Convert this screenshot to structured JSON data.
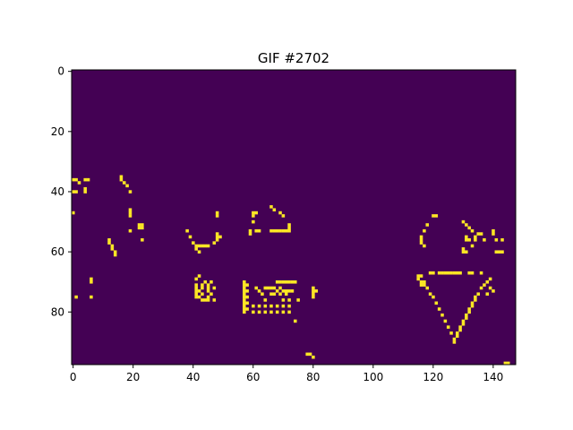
{
  "chart_data": {
    "type": "heatmap",
    "title": "GIF #2702",
    "xlabel": "",
    "ylabel": "",
    "grid": false,
    "legend": "none",
    "xlim": [
      -0.5,
      147.5
    ],
    "ylim": [
      97.5,
      -0.5
    ],
    "x_ticks": [
      0,
      20,
      40,
      60,
      80,
      100,
      120,
      140
    ],
    "y_ticks": [
      0,
      20,
      40,
      60,
      80
    ],
    "colormap": "viridis",
    "background_color": "#440154",
    "pixel_color": "#fde725",
    "value_range": [
      0,
      1
    ],
    "on_pixels": [
      [
        0,
        36
      ],
      [
        1,
        36
      ],
      [
        2,
        37
      ],
      [
        4,
        36
      ],
      [
        5,
        36
      ],
      [
        0,
        40
      ],
      [
        1,
        40
      ],
      [
        4,
        39
      ],
      [
        4,
        40
      ],
      [
        0,
        47
      ],
      [
        16,
        35
      ],
      [
        16,
        36
      ],
      [
        17,
        37
      ],
      [
        18,
        38
      ],
      [
        19,
        40
      ],
      [
        19,
        46
      ],
      [
        19,
        47
      ],
      [
        19,
        48
      ],
      [
        22,
        51
      ],
      [
        22,
        52
      ],
      [
        23,
        51
      ],
      [
        23,
        52
      ],
      [
        19,
        53
      ],
      [
        23,
        56
      ],
      [
        12,
        56
      ],
      [
        12,
        57
      ],
      [
        13,
        58
      ],
      [
        13,
        59
      ],
      [
        14,
        60
      ],
      [
        14,
        61
      ],
      [
        38,
        53
      ],
      [
        39,
        55
      ],
      [
        40,
        57
      ],
      [
        41,
        58
      ],
      [
        42,
        58
      ],
      [
        43,
        58
      ],
      [
        44,
        58
      ],
      [
        45,
        58
      ],
      [
        47,
        57
      ],
      [
        48,
        54
      ],
      [
        48,
        55
      ],
      [
        48,
        56
      ],
      [
        49,
        55
      ],
      [
        48,
        47
      ],
      [
        48,
        48
      ],
      [
        41,
        59
      ],
      [
        42,
        60
      ],
      [
        60,
        47
      ],
      [
        61,
        47
      ],
      [
        60,
        48
      ],
      [
        60,
        50
      ],
      [
        59,
        53
      ],
      [
        59,
        54
      ],
      [
        61,
        53
      ],
      [
        62,
        53
      ],
      [
        66,
        53
      ],
      [
        67,
        53
      ],
      [
        68,
        53
      ],
      [
        69,
        53
      ],
      [
        70,
        53
      ],
      [
        71,
        53
      ],
      [
        72,
        51
      ],
      [
        72,
        52
      ],
      [
        72,
        53
      ],
      [
        66,
        45
      ],
      [
        67,
        46
      ],
      [
        69,
        47
      ],
      [
        70,
        48
      ],
      [
        41,
        69
      ],
      [
        42,
        68
      ],
      [
        41,
        71
      ],
      [
        41,
        72
      ],
      [
        41,
        73
      ],
      [
        41,
        74
      ],
      [
        42,
        73
      ],
      [
        42,
        75
      ],
      [
        43,
        71
      ],
      [
        43,
        72
      ],
      [
        43,
        74
      ],
      [
        44,
        70
      ],
      [
        44,
        76
      ],
      [
        45,
        71
      ],
      [
        45,
        72
      ],
      [
        45,
        73
      ],
      [
        45,
        75
      ],
      [
        46,
        70
      ],
      [
        46,
        74
      ],
      [
        47,
        72
      ],
      [
        47,
        76
      ],
      [
        41,
        75
      ],
      [
        43,
        76
      ],
      [
        45,
        76
      ],
      [
        57,
        70
      ],
      [
        57,
        71
      ],
      [
        57,
        72
      ],
      [
        57,
        73
      ],
      [
        57,
        74
      ],
      [
        57,
        75
      ],
      [
        57,
        76
      ],
      [
        57,
        77
      ],
      [
        57,
        78
      ],
      [
        57,
        79
      ],
      [
        57,
        80
      ],
      [
        58,
        71
      ],
      [
        58,
        73
      ],
      [
        58,
        75
      ],
      [
        58,
        77
      ],
      [
        58,
        79
      ],
      [
        61,
        72
      ],
      [
        62,
        73
      ],
      [
        63,
        74
      ],
      [
        64,
        72
      ],
      [
        64,
        76
      ],
      [
        65,
        72
      ],
      [
        66,
        72
      ],
      [
        66,
        74
      ],
      [
        67,
        72
      ],
      [
        67,
        74
      ],
      [
        68,
        73
      ],
      [
        69,
        72
      ],
      [
        69,
        74
      ],
      [
        70,
        73
      ],
      [
        71,
        73
      ],
      [
        71,
        74
      ],
      [
        72,
        73
      ],
      [
        73,
        73
      ],
      [
        68,
        70
      ],
      [
        69,
        70
      ],
      [
        70,
        70
      ],
      [
        71,
        70
      ],
      [
        72,
        70
      ],
      [
        73,
        70
      ],
      [
        74,
        70
      ],
      [
        60,
        78
      ],
      [
        62,
        78
      ],
      [
        64,
        78
      ],
      [
        66,
        78
      ],
      [
        68,
        78
      ],
      [
        70,
        78
      ],
      [
        72,
        78
      ],
      [
        60,
        80
      ],
      [
        62,
        80
      ],
      [
        64,
        80
      ],
      [
        66,
        80
      ],
      [
        68,
        80
      ],
      [
        70,
        80
      ],
      [
        72,
        80
      ],
      [
        70,
        76
      ],
      [
        72,
        76
      ],
      [
        74,
        83
      ],
      [
        75,
        76
      ],
      [
        80,
        72
      ],
      [
        80,
        73
      ],
      [
        80,
        74
      ],
      [
        80,
        75
      ],
      [
        81,
        73
      ],
      [
        6,
        69
      ],
      [
        6,
        70
      ],
      [
        1,
        75
      ],
      [
        6,
        75
      ],
      [
        78,
        94
      ],
      [
        79,
        94
      ],
      [
        80,
        95
      ],
      [
        144,
        97
      ],
      [
        145,
        97
      ],
      [
        115,
        68
      ],
      [
        115,
        69
      ],
      [
        116,
        68
      ],
      [
        116,
        70
      ],
      [
        116,
        71
      ],
      [
        117,
        70
      ],
      [
        117,
        71
      ],
      [
        118,
        72
      ],
      [
        119,
        74
      ],
      [
        120,
        75
      ],
      [
        121,
        77
      ],
      [
        122,
        79
      ],
      [
        123,
        81
      ],
      [
        124,
        83
      ],
      [
        125,
        85
      ],
      [
        126,
        87
      ],
      [
        127,
        89
      ],
      [
        127,
        90
      ],
      [
        128,
        88
      ],
      [
        128,
        87
      ],
      [
        129,
        86
      ],
      [
        129,
        85
      ],
      [
        130,
        84
      ],
      [
        130,
        83
      ],
      [
        131,
        82
      ],
      [
        131,
        81
      ],
      [
        132,
        80
      ],
      [
        132,
        79
      ],
      [
        133,
        78
      ],
      [
        133,
        77
      ],
      [
        134,
        76
      ],
      [
        134,
        75
      ],
      [
        135,
        74
      ],
      [
        136,
        72
      ],
      [
        137,
        71
      ],
      [
        138,
        70
      ],
      [
        138,
        74
      ],
      [
        139,
        72
      ],
      [
        140,
        73
      ],
      [
        139,
        69
      ],
      [
        119,
        67
      ],
      [
        120,
        67
      ],
      [
        122,
        67
      ],
      [
        123,
        67
      ],
      [
        124,
        67
      ],
      [
        125,
        67
      ],
      [
        126,
        67
      ],
      [
        127,
        67
      ],
      [
        128,
        67
      ],
      [
        129,
        67
      ],
      [
        132,
        67
      ],
      [
        133,
        67
      ],
      [
        136,
        67
      ],
      [
        120,
        48
      ],
      [
        121,
        48
      ],
      [
        118,
        51
      ],
      [
        117,
        53
      ],
      [
        116,
        55
      ],
      [
        116,
        56
      ],
      [
        116,
        57
      ],
      [
        117,
        58
      ],
      [
        130,
        50
      ],
      [
        131,
        51
      ],
      [
        132,
        52
      ],
      [
        133,
        53
      ],
      [
        134,
        55
      ],
      [
        134,
        56
      ],
      [
        133,
        58
      ],
      [
        135,
        54
      ],
      [
        136,
        54
      ],
      [
        137,
        56
      ],
      [
        131,
        55
      ],
      [
        131,
        56
      ],
      [
        132,
        56
      ],
      [
        140,
        53
      ],
      [
        140,
        54
      ],
      [
        141,
        56
      ],
      [
        141,
        60
      ],
      [
        142,
        60
      ],
      [
        143,
        60
      ],
      [
        143,
        56
      ],
      [
        130,
        59
      ],
      [
        130,
        60
      ],
      [
        131,
        60
      ]
    ]
  }
}
